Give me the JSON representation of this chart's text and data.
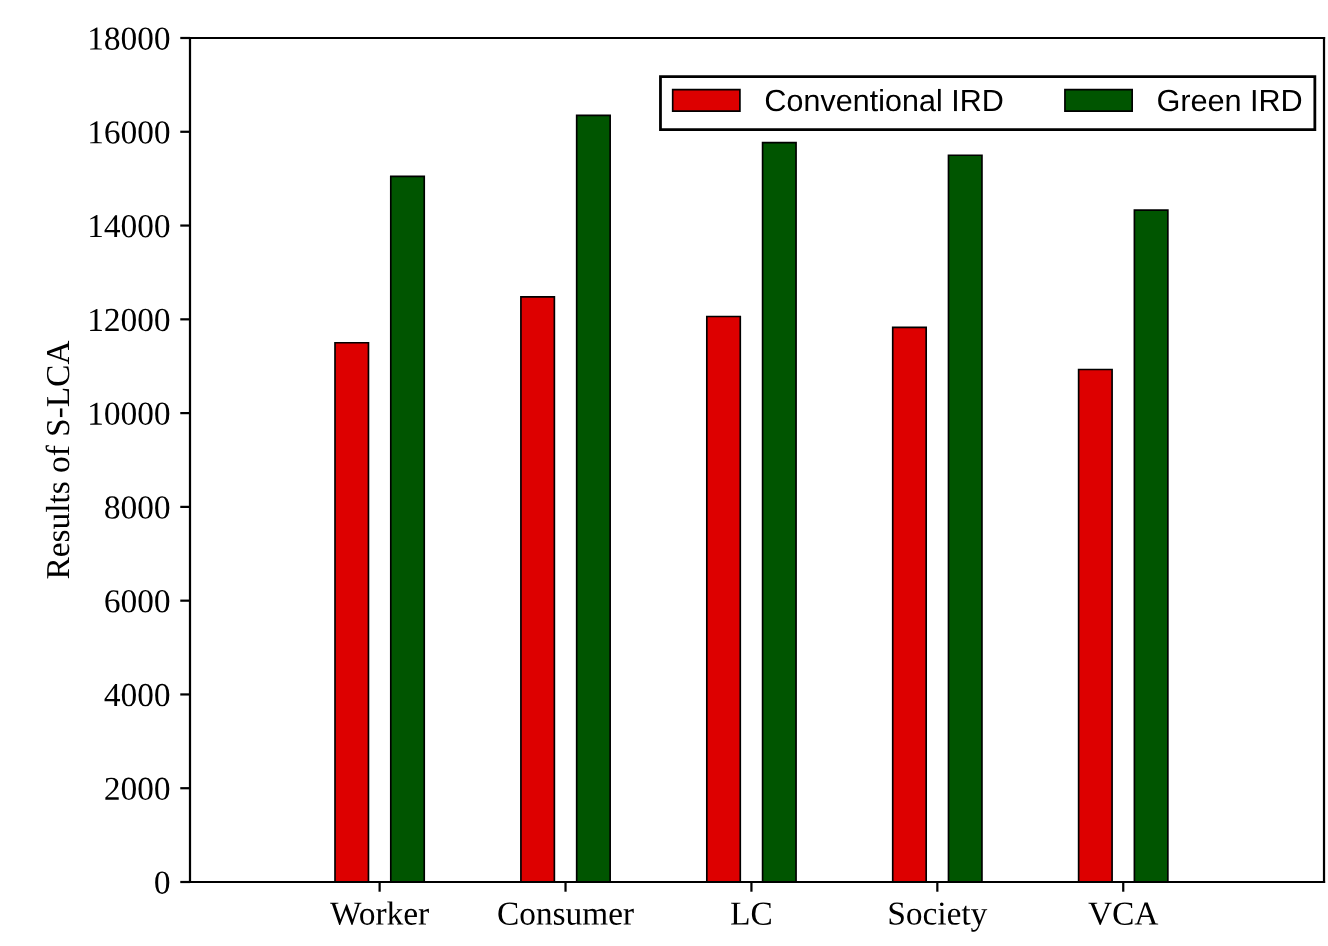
{
  "chart_data": {
    "type": "bar",
    "ylabel": "Results of S-LCA",
    "categories": [
      "Worker",
      "Consumer",
      "LC",
      "Society",
      "VCA"
    ],
    "series": [
      {
        "name": "Conventional IRD",
        "color": "#dd0000",
        "values": [
          11500,
          12480,
          12060,
          11830,
          10930
        ]
      },
      {
        "name": "Green IRD",
        "color": "#005500",
        "values": [
          15050,
          16350,
          15770,
          15500,
          14330
        ]
      }
    ],
    "ylim": [
      0,
      18000
    ],
    "yticks": [
      0,
      2000,
      4000,
      6000,
      8000,
      10000,
      12000,
      14000,
      16000,
      18000
    ],
    "grid": false,
    "legend": "top right"
  }
}
